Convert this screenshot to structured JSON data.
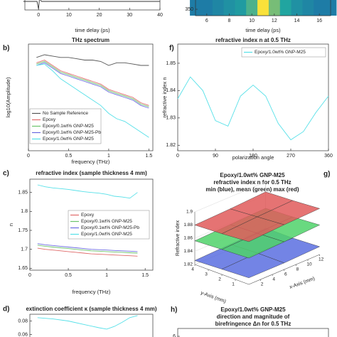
{
  "chart_data": [
    {
      "type": "line",
      "xlabel": "time delay (ps)",
      "x": [
        -5,
        -0.5,
        0,
        0.3,
        1,
        40
      ],
      "series": [
        {
          "color": "#333333",
          "values": [
            0,
            0,
            -0.9,
            0.3,
            0,
            0
          ]
        }
      ],
      "xlim": [
        -4.5,
        40
      ],
      "ylim": [
        -1,
        1
      ],
      "xticks": [
        0,
        10,
        20,
        30,
        40
      ]
    },
    {
      "type": "heatmap",
      "xlabel": "time delay (ps)",
      "x": [
        5,
        6,
        7,
        8,
        9,
        10,
        11,
        12,
        13,
        14,
        15,
        16,
        17
      ],
      "values": [
        0.3,
        0.3,
        0.35,
        0.4,
        0.45,
        0.6,
        1.0,
        0.7,
        0.5,
        0.4,
        0.35,
        0.3,
        0.3
      ],
      "xlim": [
        5,
        17
      ],
      "ylim": [
        343,
        368
      ],
      "xticks": [
        6,
        8,
        10,
        12,
        14,
        16
      ],
      "yticks": [
        350
      ]
    },
    {
      "type": "line",
      "panel_label": "b)",
      "title": "THz spectrum",
      "xlabel": "frequency (THz)",
      "ylabel": "log10(Amplitude)",
      "x": [
        0.1,
        0.2,
        0.3,
        0.4,
        0.5,
        0.6,
        0.7,
        0.8,
        0.9,
        1.0,
        1.1,
        1.2,
        1.3,
        1.4,
        1.5
      ],
      "series": [
        {
          "name": "No Sample Reference",
          "color": "#555555",
          "values": [
            0.7,
            0.8,
            0.75,
            0.7,
            0.7,
            0.65,
            0.6,
            0.6,
            0.55,
            0.4,
            0.5,
            0.5,
            0.45,
            0.4,
            0.4
          ]
        },
        {
          "name": "Epoxy",
          "color": "#e06a6a",
          "values": [
            0.5,
            0.6,
            0.4,
            0.2,
            0.1,
            0,
            -0.1,
            -0.2,
            -0.3,
            -0.5,
            -0.6,
            -0.7,
            -0.8,
            -1.0,
            -1.1
          ]
        },
        {
          "name": "Epoxy/0.1wt% GNP-M25",
          "color": "#6cc46c",
          "values": [
            0.45,
            0.55,
            0.35,
            0.15,
            0.05,
            -0.05,
            -0.15,
            -0.25,
            -0.35,
            -0.55,
            -0.65,
            -0.75,
            -0.85,
            -1.05,
            -1.15
          ]
        },
        {
          "name": "Epoxy/0.1wt% GNP-M25-Pb",
          "color": "#6a6ae0",
          "values": [
            0.4,
            0.5,
            0.3,
            0.1,
            0,
            -0.1,
            -0.2,
            -0.3,
            -0.4,
            -0.6,
            -0.7,
            -0.8,
            -0.9,
            -1.1,
            -1.2
          ]
        },
        {
          "name": "Epoxy/1.0wt% GNP-M25",
          "color": "#55e0e8",
          "values": [
            0.4,
            0.45,
            0.2,
            -0.1,
            -0.3,
            -0.5,
            -0.7,
            -0.9,
            -1.1,
            -1.4,
            -1.6,
            -1.7,
            -1.9,
            -2.1,
            -2.3
          ]
        }
      ],
      "xlim": [
        0,
        1.55
      ],
      "ylim": [
        -2.8,
        1.2
      ],
      "xticks": [
        0,
        0.5,
        1,
        1.5
      ]
    },
    {
      "type": "line",
      "panel_label": "f)",
      "title": "refractive index n at 0.5 THz",
      "xlabel": "polarization angle",
      "ylabel": "refractive index n",
      "x": [
        0,
        30,
        60,
        90,
        120,
        150,
        180,
        210,
        240,
        270,
        300,
        330,
        360
      ],
      "series": [
        {
          "name": "Epoxy/1.0wt% GNP-M25",
          "color": "#55e0e8",
          "values": [
            1.837,
            1.845,
            1.84,
            1.829,
            1.827,
            1.838,
            1.842,
            1.838,
            1.828,
            1.822,
            1.825,
            1.832,
            1.838
          ]
        }
      ],
      "xlim": [
        0,
        360
      ],
      "ylim": [
        1.818,
        1.857
      ],
      "xticks": [
        0,
        90,
        180,
        270,
        360
      ],
      "yticks": [
        1.82,
        1.83,
        1.84,
        1.85
      ]
    },
    {
      "type": "line",
      "panel_label": "c)",
      "title": "refractive index (sample thickness 4 mm)",
      "xlabel": "frequency (THz)",
      "ylabel": "n",
      "x": [
        0.1,
        0.2,
        0.3,
        0.4,
        0.5,
        0.6,
        0.7,
        0.8,
        0.9,
        1.0,
        1.1,
        1.2,
        1.3,
        1.4
      ],
      "series": [
        {
          "name": "Epoxy",
          "color": "#e06a6a",
          "values": [
            1.703,
            1.7,
            1.698,
            1.696,
            1.694,
            1.692,
            1.69,
            1.688,
            1.687,
            1.686,
            1.685,
            1.684,
            1.683,
            1.682
          ]
        },
        {
          "name": "Epoxy/0.1wt% GNP-M25",
          "color": "#6cc46c",
          "values": [
            1.711,
            1.708,
            1.706,
            1.704,
            1.702,
            1.7,
            1.698,
            1.696,
            1.695,
            1.694,
            1.693,
            1.692,
            1.691,
            1.69
          ]
        },
        {
          "name": "Epoxy/0.1wt% GNP-M25-Pb",
          "color": "#6a6ae0",
          "values": [
            1.715,
            1.712,
            1.71,
            1.708,
            1.706,
            1.704,
            1.702,
            1.7,
            1.699,
            1.698,
            1.697,
            1.696,
            1.695,
            1.694
          ]
        },
        {
          "name": "Epoxy/1.0wt% GNP-M25",
          "color": "#55e0e8",
          "values": [
            1.87,
            1.865,
            1.862,
            1.86,
            1.858,
            1.855,
            1.852,
            1.85,
            1.848,
            1.845,
            1.84,
            1.838,
            1.835,
            1.85
          ]
        }
      ],
      "xlim": [
        0,
        1.6
      ],
      "ylim": [
        1.645,
        1.885
      ],
      "xticks": [
        0,
        0.5,
        1,
        1.5
      ],
      "yticks": [
        1.65,
        1.7,
        1.75,
        1.8,
        1.85
      ]
    },
    {
      "type": "surface3d",
      "panel_label": "g)",
      "title": [
        "Epoxy/1.0wt% GNP-M25",
        "refractive index n for 0.5 THz",
        "min (blue), mean (green) max (red)"
      ],
      "xlabel": "x-Axis (mm)",
      "ylabel": "y-Axis (mm)",
      "zlabel": "Refractive index",
      "x": [
        0,
        6,
        12
      ],
      "y": [
        0,
        2,
        4
      ],
      "series": [
        {
          "color": "#5a6ee0",
          "values": [
            [
              1.83,
              1.83,
              1.832
            ],
            [
              1.828,
              1.83,
              1.83
            ],
            [
              1.826,
              1.828,
              1.83
            ]
          ]
        },
        {
          "color": "#4fd26a",
          "values": [
            [
              1.86,
              1.862,
              1.865
            ],
            [
              1.858,
              1.86,
              1.862
            ],
            [
              1.856,
              1.858,
              1.86
            ]
          ]
        },
        {
          "color": "#e05a5a",
          "values": [
            [
              1.885,
              1.888,
              1.89
            ],
            [
              1.882,
              1.885,
              1.887
            ],
            [
              1.88,
              1.882,
              1.885
            ]
          ]
        }
      ],
      "xticks": [
        2,
        4,
        6,
        8,
        10,
        12
      ],
      "yticks": [
        1,
        2,
        3,
        4
      ],
      "zlim": [
        1.82,
        1.9
      ],
      "zticks": [
        1.82,
        1.84,
        1.86,
        1.88,
        1.9
      ]
    },
    {
      "type": "line",
      "panel_label": "d)",
      "title": "extinction coefficient κ (sample thickness 4 mm)",
      "x": [
        0.1,
        0.3,
        0.5,
        0.7,
        0.9,
        1.0,
        1.1,
        1.2,
        1.3,
        1.4
      ],
      "series": [
        {
          "color": "#55e0e8",
          "values": [
            0.085,
            0.083,
            0.08,
            0.075,
            0.07,
            0.068,
            0.072,
            0.078,
            0.085,
            0.088
          ]
        }
      ],
      "xlim": [
        0,
        1.6
      ],
      "ylim": [
        0.05,
        0.09
      ],
      "yticks": [
        0.06,
        0.08
      ]
    },
    {
      "type": "line",
      "panel_label": "h)",
      "title": [
        "Epoxy/1.0wt% GNP-M25",
        "direction and magnitude of",
        "birefringence Δn for 0.5 THz"
      ],
      "ylim": [
        5.5,
        6.5
      ],
      "yticks": [
        6
      ]
    }
  ]
}
